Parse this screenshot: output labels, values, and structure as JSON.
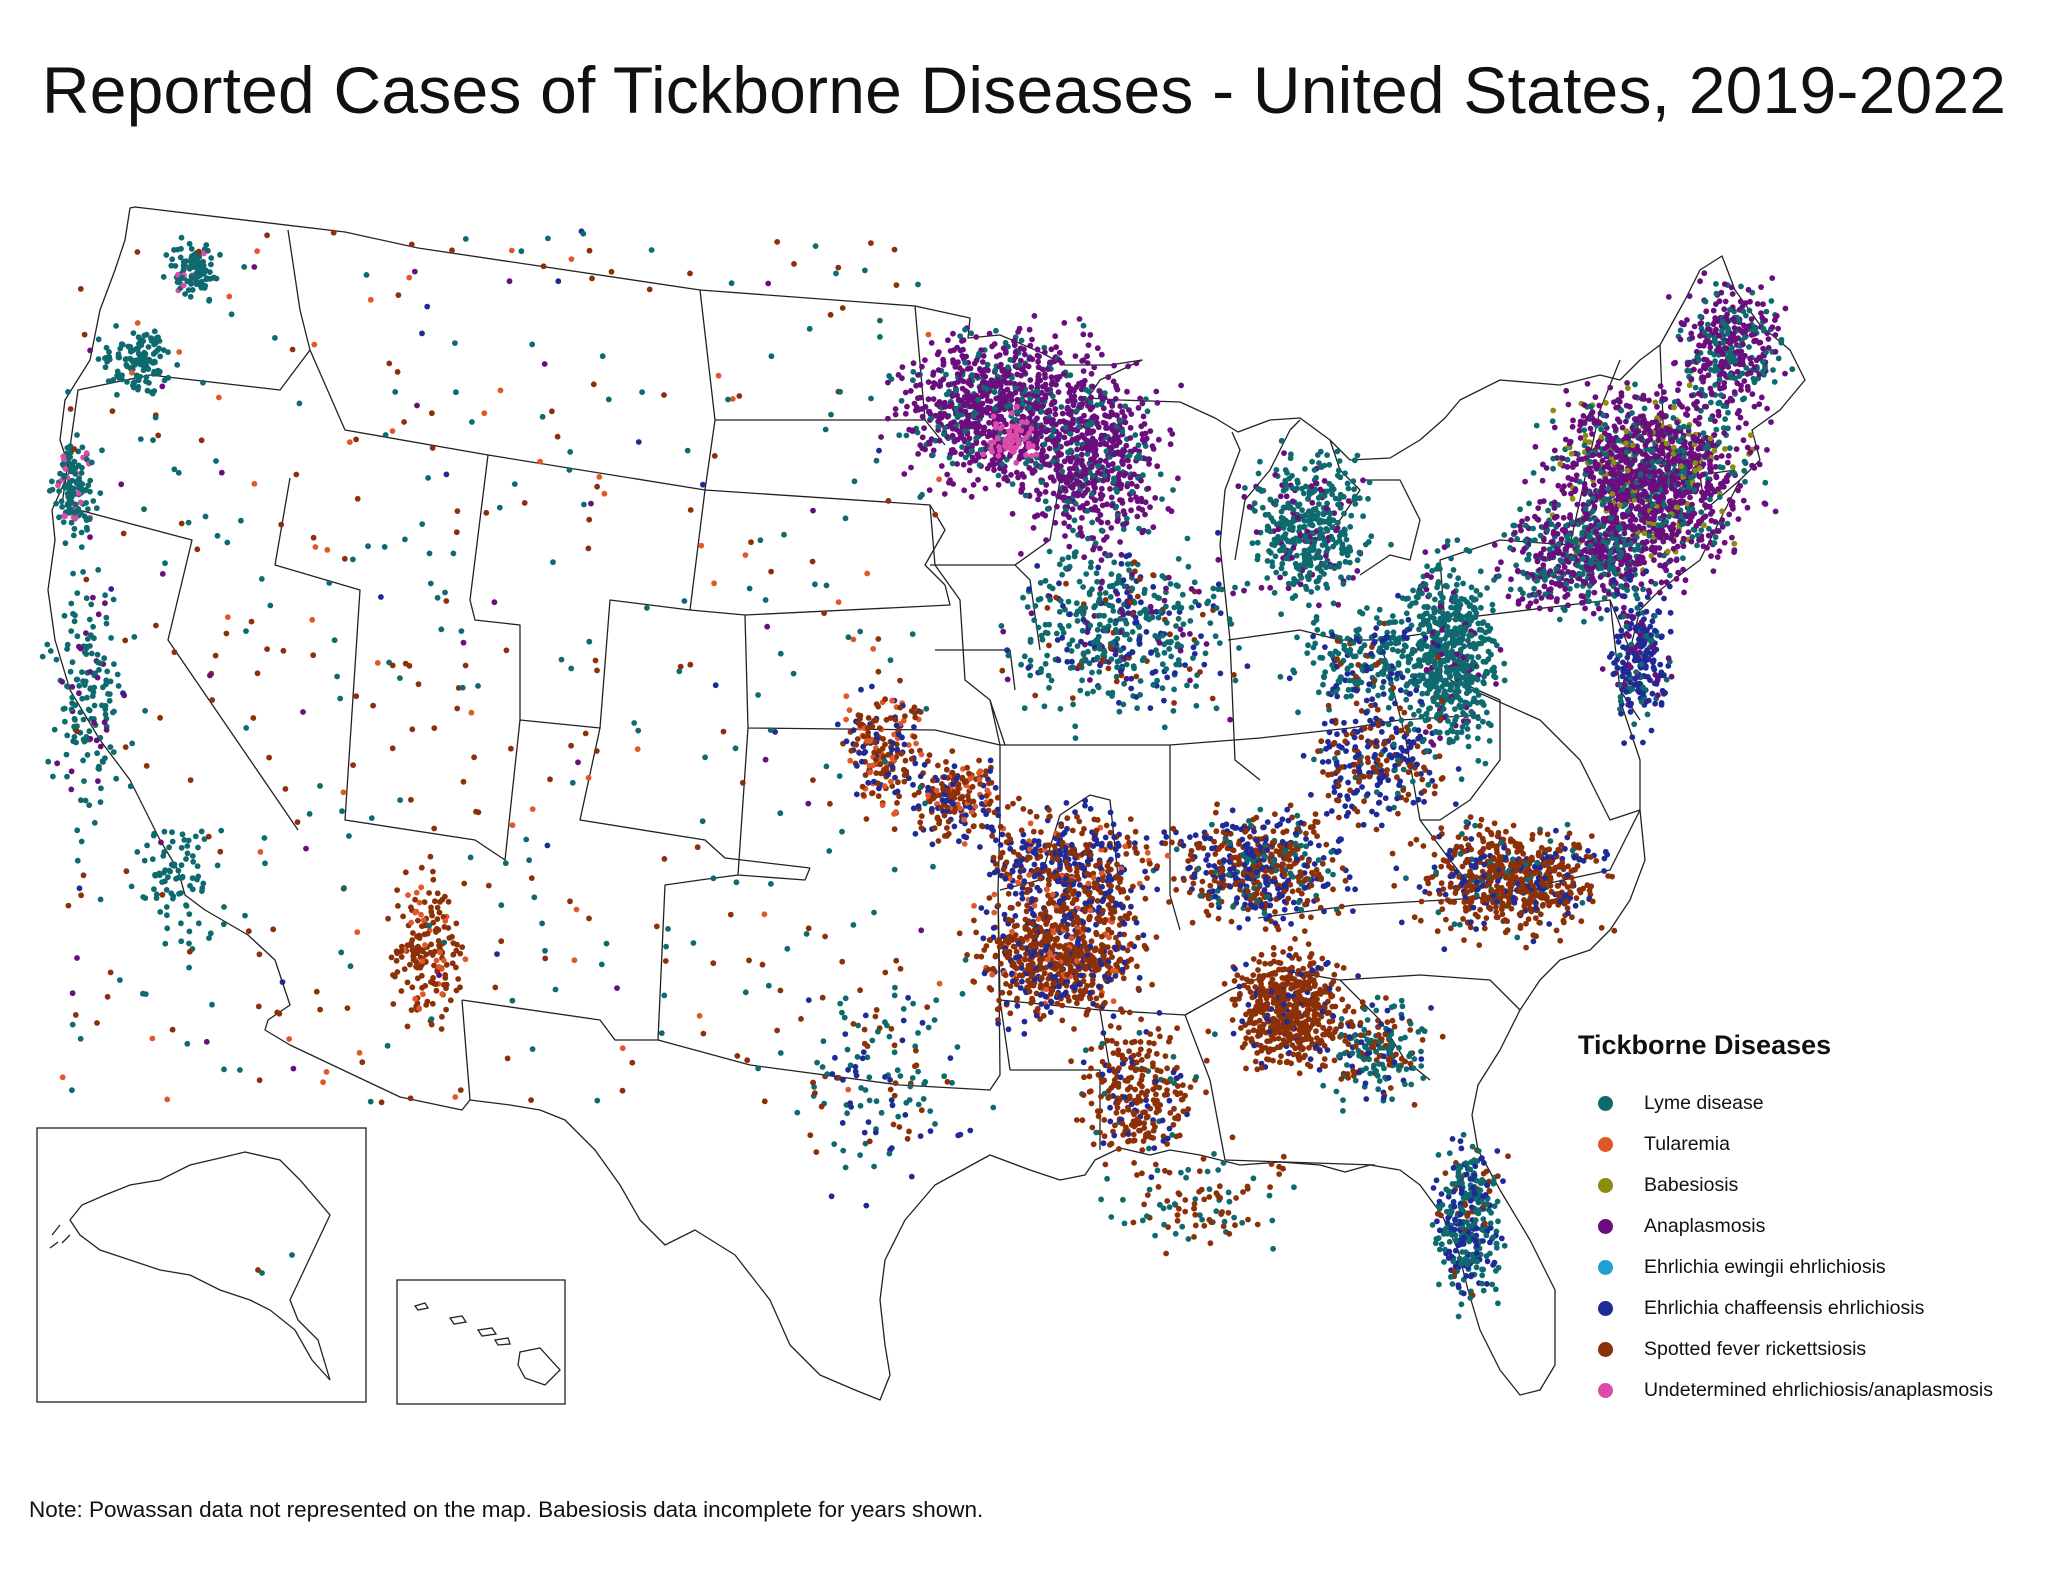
{
  "title": "Reported Cases of Tickborne Diseases - United States, 2019-2022",
  "legend": {
    "title": "Tickborne Diseases",
    "items": [
      {
        "label": "Lyme disease",
        "color": "#0e6a6e"
      },
      {
        "label": "Tularemia",
        "color": "#e0582a"
      },
      {
        "label": "Babesiosis",
        "color": "#8c8c10"
      },
      {
        "label": "Anaplasmosis",
        "color": "#6a0e7e"
      },
      {
        "label": "Ehrlichia ewingii ehrlichiosis",
        "color": "#1ea0d2"
      },
      {
        "label": "Ehrlichia chaffeensis ehrlichiosis",
        "color": "#1e2a96"
      },
      {
        "label": "Spotted fever rickettsiosis",
        "color": "#8c3008"
      },
      {
        "label": "Undetermined ehrlichiosis/anaplasmosis",
        "color": "#dc4aaa"
      }
    ]
  },
  "note": "Note: Powassan data not represented on the map. Babesiosis data incomplete for years shown."
}
